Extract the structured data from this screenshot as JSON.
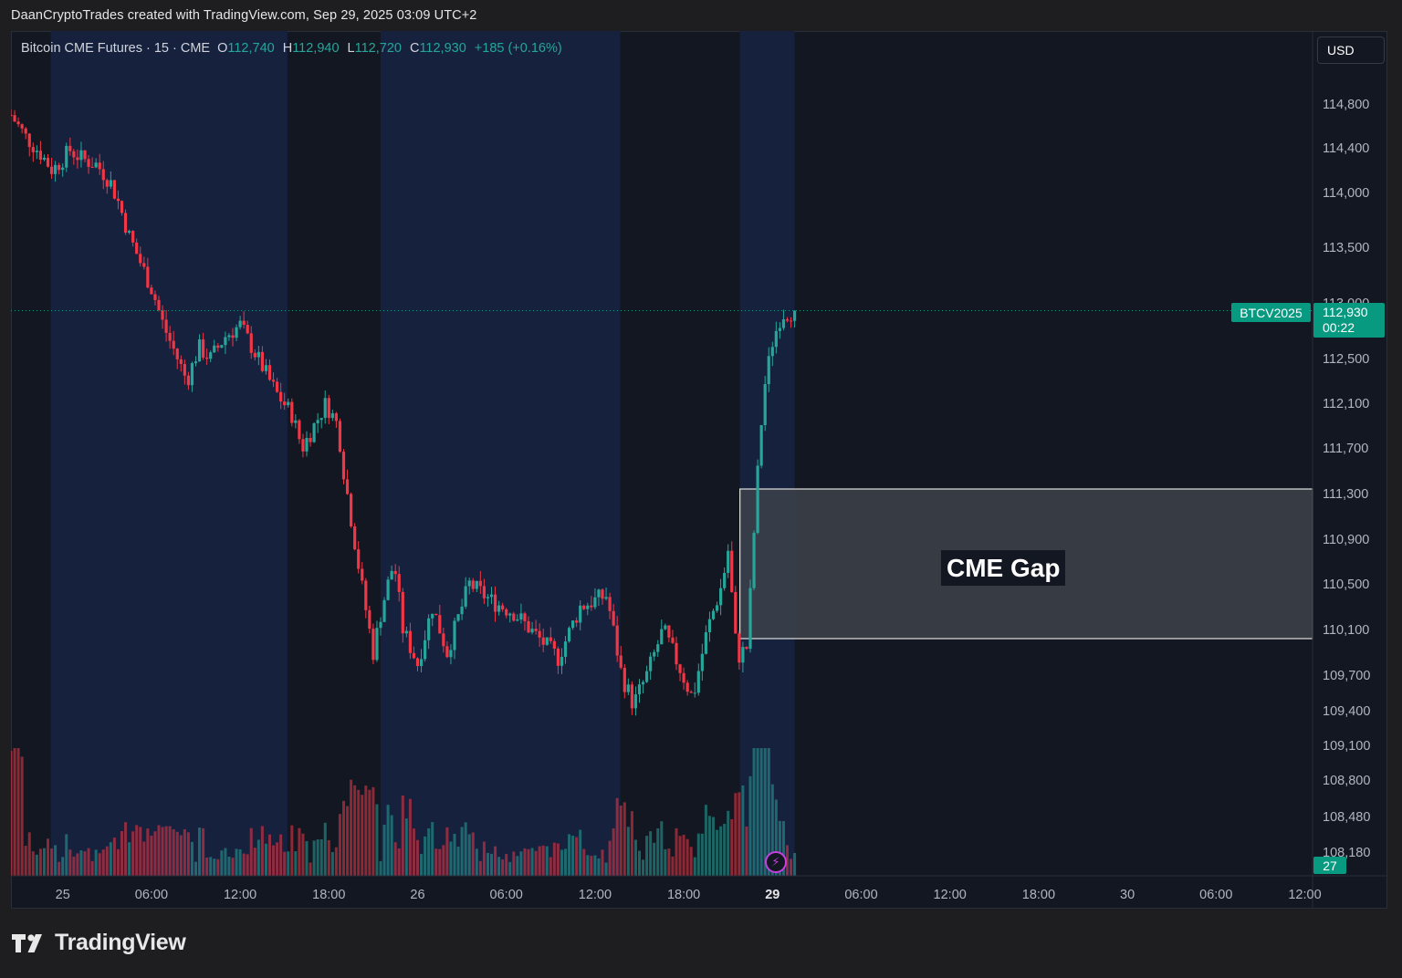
{
  "caption": "DaanCryptoTrades created with TradingView.com, Sep 29, 2025 03:09 UTC+2",
  "legend": {
    "symbol": "Bitcoin CME Futures · 15 · CME",
    "open_label": "O",
    "open": "112,740",
    "high_label": "H",
    "high": "112,940",
    "low_label": "L",
    "low": "112,720",
    "close_label": "C",
    "close": "112,930",
    "change": "+185 (+0.16%)"
  },
  "currency": "USD",
  "last_price": {
    "symbol": "BTCV2025",
    "price": "112,930",
    "countdown": "00:22"
  },
  "volume_badge": "27",
  "annotation": {
    "text": "CME Gap"
  },
  "bolt_icon": "lightning-bolt-icon",
  "logo": {
    "text": "TradingView",
    "icon": "tradingview-logo-icon"
  },
  "colors": {
    "up": "#26a69a",
    "down": "#f23645",
    "session_fill": "#15213d",
    "background": "#131722",
    "badge": "#089981",
    "gap_box": "#40434b"
  },
  "chart_data": {
    "type": "candlestick",
    "symbol": "Bitcoin CME Futures",
    "interval": "15",
    "y_ticks": [
      114800,
      114400,
      114000,
      113500,
      113000,
      112500,
      112100,
      111700,
      111300,
      110900,
      110500,
      110100,
      109700,
      109400,
      109100,
      108800,
      108480,
      108180
    ],
    "y_tick_labels": [
      "114,800",
      "114,400",
      "114,000",
      "113,500",
      "113,000",
      "112,500",
      "112,100",
      "111,700",
      "111,300",
      "110,900",
      "110,500",
      "110,100",
      "109,700",
      "109,400",
      "109,100",
      "108,800",
      "108,480",
      "108,180"
    ],
    "x_tick_labels": [
      "25",
      "06:00",
      "12:00",
      "18:00",
      "26",
      "06:00",
      "12:00",
      "18:00",
      "29",
      "06:00",
      "12:00",
      "18:00",
      "30",
      "06:00",
      "12:00"
    ],
    "x_tick_hours": [
      0,
      6,
      12,
      18,
      24,
      30,
      36,
      42,
      48,
      54,
      60,
      66,
      72,
      78,
      84
    ],
    "x_start_hour": -3.5,
    "session_bands_hours": [
      [
        -0.8,
        15.2
      ],
      [
        21.5,
        37.7
      ],
      [
        45.8,
        49.5
      ]
    ],
    "gap_zone": {
      "top": 111340,
      "bottom": 110020,
      "start_hour": 45.8
    },
    "last_close": 112930,
    "price_path": [
      [
        -3.5,
        114700
      ],
      [
        -2.5,
        114500
      ],
      [
        -1.5,
        114350
      ],
      [
        -0.7,
        114200
      ],
      [
        0,
        114300
      ],
      [
        0.5,
        114380
      ],
      [
        1.3,
        114300
      ],
      [
        2.3,
        114250
      ],
      [
        3.2,
        114100
      ],
      [
        3.8,
        113900
      ],
      [
        4.5,
        113600
      ],
      [
        5.3,
        113350
      ],
      [
        6.1,
        113100
      ],
      [
        6.8,
        112800
      ],
      [
        7.6,
        112550
      ],
      [
        8.4,
        112300
      ],
      [
        9.2,
        112600
      ],
      [
        10.0,
        112500
      ],
      [
        11.0,
        112700
      ],
      [
        12.0,
        112800
      ],
      [
        13.2,
        112500
      ],
      [
        14.4,
        112200
      ],
      [
        15.5,
        112000
      ],
      [
        16.2,
        111700
      ],
      [
        17.0,
        111900
      ],
      [
        17.8,
        112100
      ],
      [
        18.6,
        111900
      ],
      [
        19.0,
        111500
      ],
      [
        19.6,
        111000
      ],
      [
        20.2,
        110500
      ],
      [
        21.0,
        109900
      ],
      [
        21.6,
        110300
      ],
      [
        22.4,
        110700
      ],
      [
        23.0,
        110100
      ],
      [
        24.0,
        109800
      ],
      [
        25.0,
        110300
      ],
      [
        26.0,
        109900
      ],
      [
        27.5,
        110500
      ],
      [
        29.0,
        110350
      ],
      [
        30.5,
        110250
      ],
      [
        32.0,
        110050
      ],
      [
        33.5,
        109850
      ],
      [
        35.0,
        110300
      ],
      [
        36.8,
        110400
      ],
      [
        37.8,
        109700
      ],
      [
        38.6,
        109450
      ],
      [
        39.5,
        109700
      ],
      [
        40.6,
        110100
      ],
      [
        41.6,
        109800
      ],
      [
        42.6,
        109500
      ],
      [
        43.6,
        110100
      ],
      [
        44.6,
        110500
      ],
      [
        45.0,
        110800
      ],
      [
        45.6,
        109850
      ],
      [
        46.3,
        109950
      ],
      [
        46.9,
        111300
      ],
      [
        47.4,
        112200
      ],
      [
        48.0,
        112650
      ],
      [
        48.6,
        112900
      ],
      [
        49.5,
        112930
      ]
    ]
  }
}
